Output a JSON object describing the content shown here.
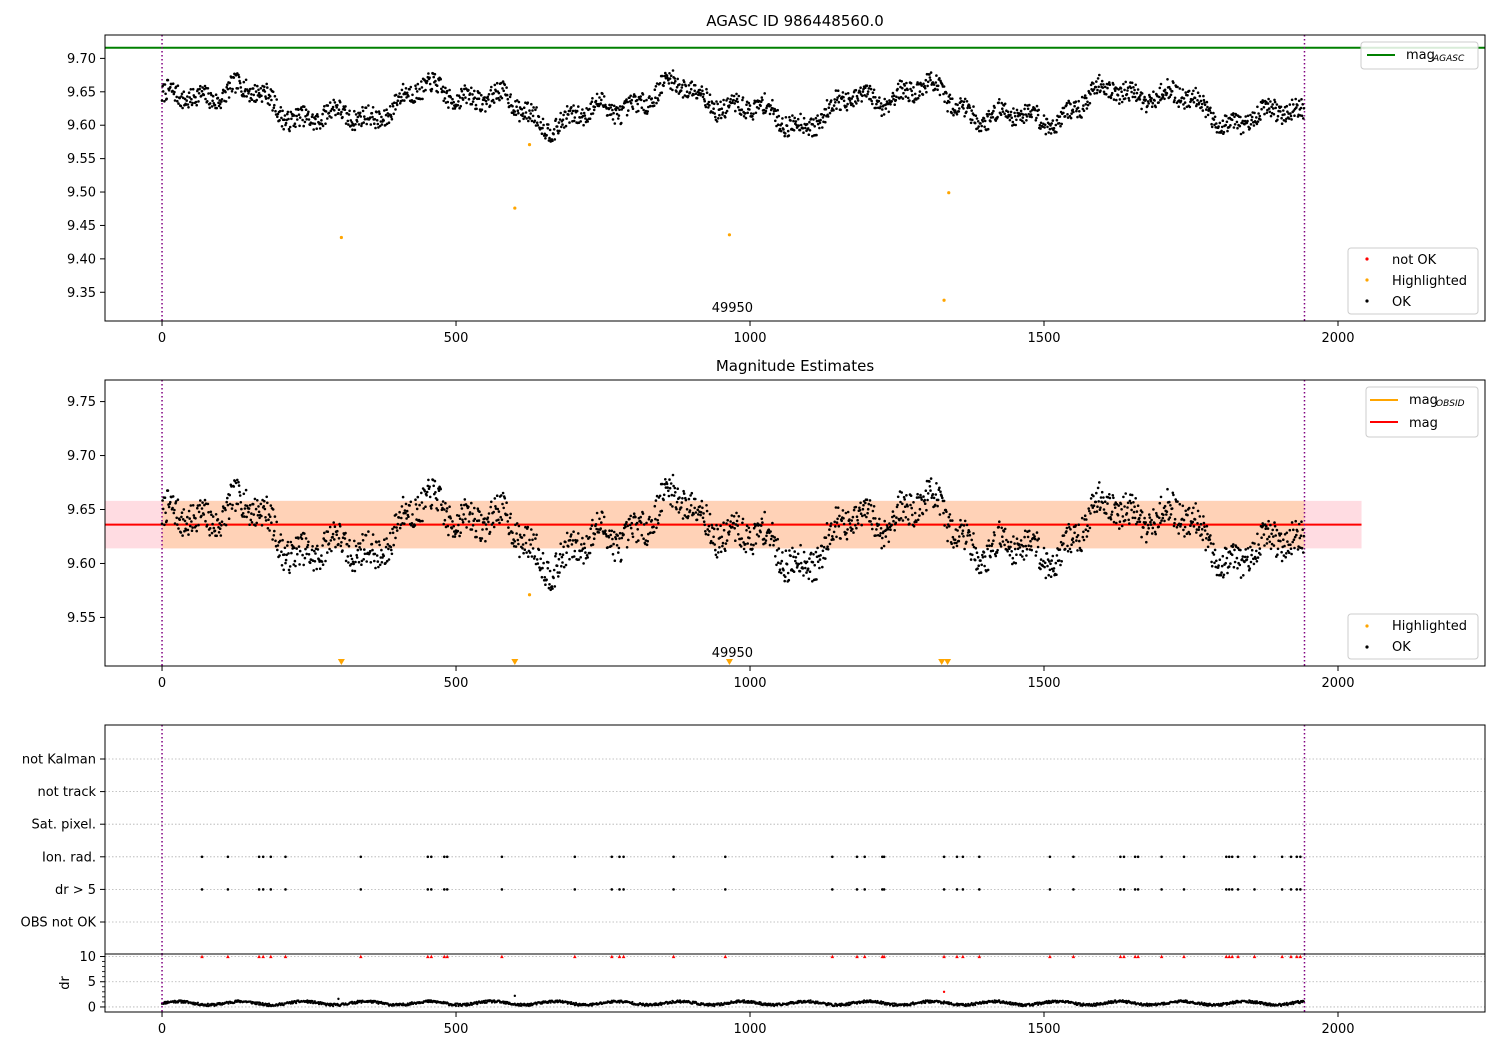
{
  "figure": {
    "title_top": "AGASC ID 986448560.0"
  },
  "chart_data": [
    {
      "id": "top",
      "type": "scatter",
      "title": "AGASC ID 986448560.0",
      "xlim": [
        -97,
        2250
      ],
      "ylim": [
        9.307,
        9.735
      ],
      "xticks": [
        0,
        500,
        1000,
        1500,
        2000
      ],
      "yticks": [
        9.35,
        9.4,
        9.45,
        9.5,
        9.55,
        9.6,
        9.65,
        9.7
      ],
      "ytick_labels": [
        "9.35",
        "9.40",
        "9.45",
        "9.50",
        "9.55",
        "9.60",
        "9.65",
        "9.70"
      ],
      "vlines": [
        0,
        1943
      ],
      "obsid_label": "49950",
      "obsid_label_x": 970,
      "hline": {
        "name": "mag_AGASC",
        "value": 9.716,
        "color": "#008000"
      },
      "ok_series": {
        "name": "OK",
        "n": 1943,
        "base": 9.63,
        "color": "#000000"
      },
      "highlighted": {
        "name": "Highlighted",
        "color": "#ffa500",
        "points": [
          [
            305,
            9.432
          ],
          [
            600,
            9.476
          ],
          [
            625,
            9.571
          ],
          [
            965,
            9.436
          ],
          [
            1330,
            9.338
          ],
          [
            1338,
            9.499
          ]
        ]
      },
      "legend_line": {
        "label": "mag",
        "sub": "AGASC"
      },
      "legend_points": [
        {
          "label": "not OK",
          "color": "#ff0000"
        },
        {
          "label": "Highlighted",
          "color": "#ffa500"
        },
        {
          "label": "OK",
          "color": "#000000"
        }
      ]
    },
    {
      "id": "mid",
      "type": "scatter",
      "title": "Magnitude Estimates",
      "xlim": [
        -97,
        2250
      ],
      "ylim": [
        9.505,
        9.77
      ],
      "xticks": [
        0,
        500,
        1000,
        1500,
        2000
      ],
      "yticks": [
        9.55,
        9.6,
        9.65,
        9.7,
        9.75
      ],
      "ytick_labels": [
        "9.55",
        "9.60",
        "9.65",
        "9.70",
        "9.75"
      ],
      "vlines": [
        0,
        1943
      ],
      "obsid_label": "49950",
      "obsid_label_x": 970,
      "mag": 9.636,
      "mag_band": [
        9.614,
        9.658
      ],
      "mag_band_x": [
        -97,
        2040
      ],
      "obsid_band_x": [
        0,
        1943
      ],
      "highlighted": {
        "name": "Highlighted",
        "color": "#ffa500",
        "points": [
          [
            625,
            9.571
          ]
        ],
        "below_range_x": [
          305,
          600,
          965,
          1326,
          1336
        ]
      },
      "legend_lines": [
        {
          "label": "mag",
          "sub": "OBSID",
          "color": "#ffa500"
        },
        {
          "label": "mag",
          "sub": "",
          "color": "#ff0000"
        }
      ],
      "legend_points": [
        {
          "label": "Highlighted",
          "color": "#ffa500"
        },
        {
          "label": "OK",
          "color": "#000000"
        }
      ]
    },
    {
      "id": "flags",
      "type": "scatter",
      "xlim": [
        -97,
        2250
      ],
      "vlines": [
        0,
        1943
      ],
      "categories": [
        "not Kalman",
        "not track",
        "Sat. pixel.",
        "Ion. rad.",
        "dr > 5",
        "OBS not OK"
      ],
      "flag_x": [
        68,
        112,
        165,
        172,
        185,
        210,
        338,
        452,
        458,
        480,
        485,
        578,
        702,
        765,
        778,
        785,
        870,
        958,
        1140,
        1182,
        1195,
        1225,
        1228,
        1330,
        1352,
        1362,
        1390,
        1510,
        1550,
        1630,
        1636,
        1655,
        1660,
        1700,
        1738,
        1810,
        1815,
        1820,
        1830,
        1858,
        1905,
        1920,
        1930,
        1936
      ],
      "flag_rows": [
        "Ion. rad.",
        "dr > 5"
      ],
      "dr_panel": {
        "ylabel": "dr",
        "yticks": [
          0,
          5,
          10
        ],
        "ytick_labels": [
          "0",
          "5",
          "10"
        ],
        "ylim": [
          -1,
          10.5
        ],
        "high_marker_value": 10,
        "outliers": [
          [
            300,
            1.6
          ],
          [
            600,
            2.2
          ],
          [
            1330,
            3.0
          ]
        ]
      }
    }
  ]
}
